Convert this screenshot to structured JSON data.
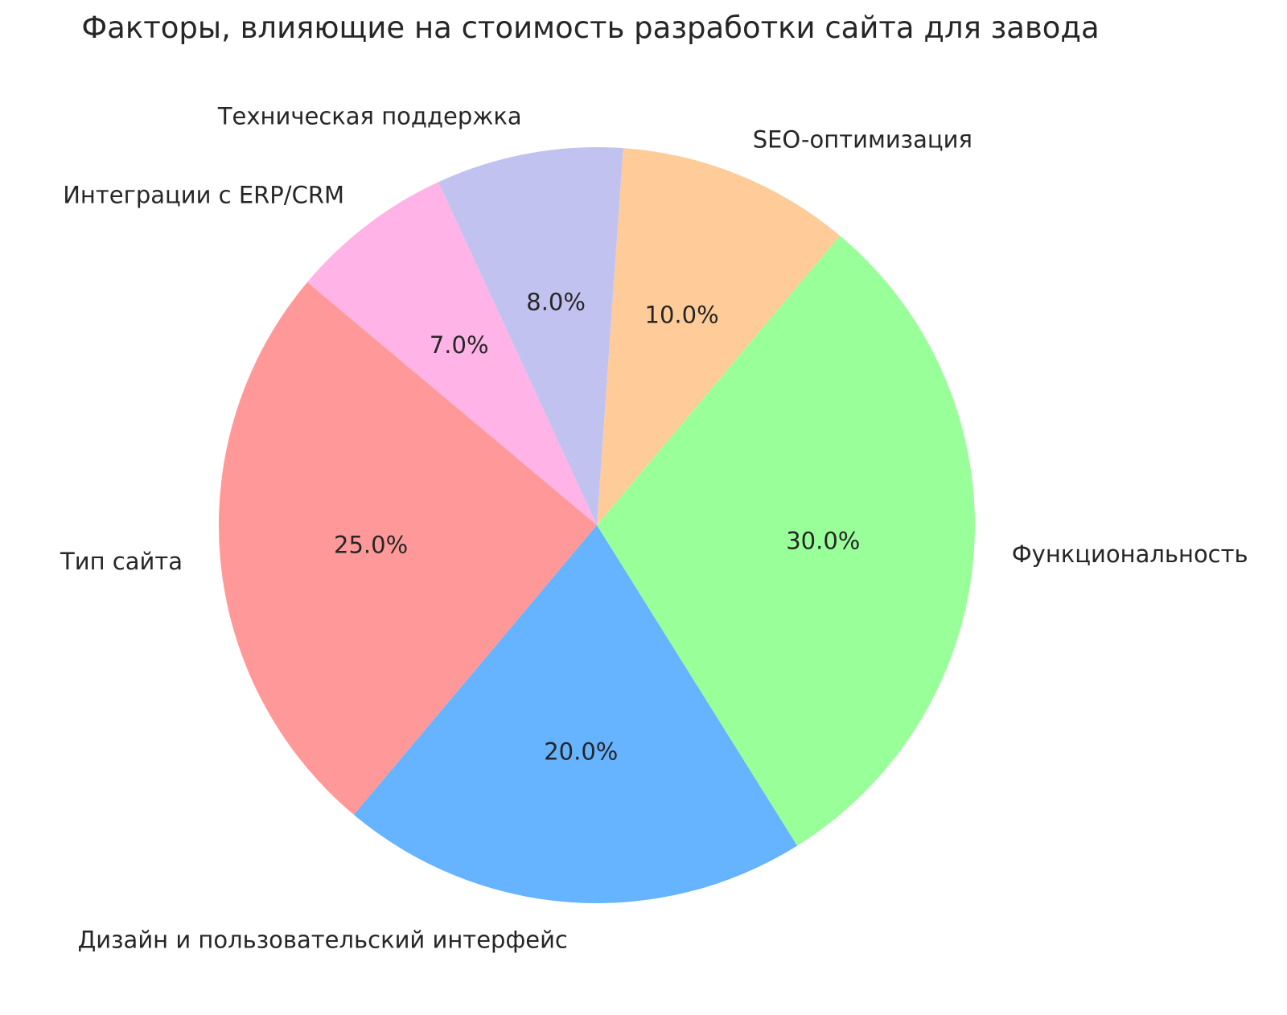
{
  "chart_data": {
    "type": "pie",
    "title": "Факторы, влияющие на стоимость разработки сайта для завода",
    "categories": [
      "Функциональность",
      "SEO-оптимизация",
      "Техническая поддержка",
      "Интеграции с ERP/CRM",
      "Тип сайта",
      "Дизайн и пользовательский интерфейс"
    ],
    "values": [
      30.0,
      10.0,
      8.0,
      7.0,
      25.0,
      20.0
    ],
    "percent_labels": [
      "30.0%",
      "10.0%",
      "8.0%",
      "7.0%",
      "25.0%",
      "20.0%"
    ],
    "colors": [
      "#99ff99",
      "#ffcc99",
      "#c2c2f0",
      "#ffb3e6",
      "#ff9999",
      "#66b3ff"
    ],
    "layout": {
      "direction": "counterclockwise",
      "start_angle_deg": -58,
      "label_distance": 1.1,
      "pct_distance": 0.6,
      "legend": "none",
      "background": "#ffffff",
      "text_color": "#262626"
    }
  }
}
